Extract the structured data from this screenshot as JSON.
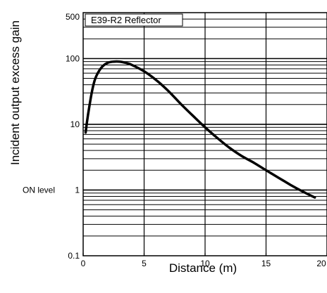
{
  "chart_data": {
    "type": "line",
    "title": "E39-R2 Reflector",
    "xlabel": "Distance (m)",
    "ylabel": "Incident output excess gain",
    "xlim": [
      0,
      20
    ],
    "ylim": [
      0.1,
      500
    ],
    "yscale": "log",
    "x_ticks": [
      {
        "value": 0,
        "label": "0"
      },
      {
        "value": 5,
        "label": "5"
      },
      {
        "value": 10,
        "label": "10"
      },
      {
        "value": 15,
        "label": "15"
      },
      {
        "value": 20,
        "label": "20"
      }
    ],
    "y_ticks": [
      {
        "value": 0.1,
        "label": "0.1"
      },
      {
        "value": 1,
        "label": "1"
      },
      {
        "value": 10,
        "label": "10"
      },
      {
        "value": 100,
        "label": "100"
      },
      {
        "value": 500,
        "label": "500"
      }
    ],
    "annotations": [
      {
        "text": "ON level",
        "y": 1
      }
    ],
    "grid": true,
    "series": [
      {
        "x": [
          0.2,
          0.4,
          0.7,
          1.0,
          1.5,
          2.0,
          2.5,
          3.0,
          3.5,
          4.0,
          5.0,
          6.0,
          7.0,
          8.0,
          9.0,
          10.0,
          11.0,
          12.0,
          13.0,
          14.0,
          15.0,
          16.0,
          17.0,
          18.0,
          19.0
        ],
        "values": [
          7.5,
          14,
          30,
          50,
          73,
          86,
          90,
          90,
          86,
          80,
          64,
          47,
          32,
          20.5,
          13.5,
          9,
          6.2,
          4.4,
          3.3,
          2.6,
          2.0,
          1.55,
          1.2,
          0.95,
          0.77
        ]
      }
    ]
  }
}
